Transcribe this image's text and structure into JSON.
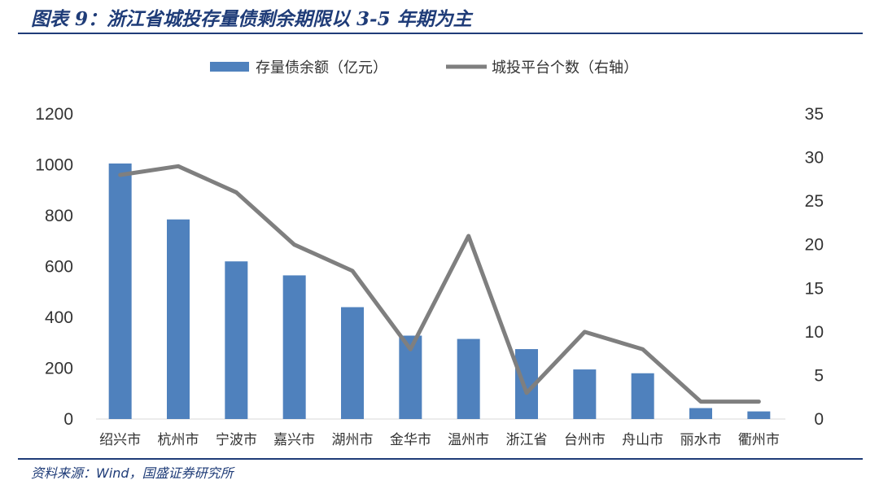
{
  "title": "图表 9：浙江省城投存量债剩余期限以 3-5 年期为主",
  "source": "资料来源：Wind，国盛证券研究所",
  "chart_data": {
    "type": "bar",
    "categories": [
      "绍兴市",
      "杭州市",
      "宁波市",
      "嘉兴市",
      "湖州市",
      "金华市",
      "温州市",
      "浙江省",
      "台州市",
      "舟山市",
      "丽水市",
      "衢州市"
    ],
    "series": [
      {
        "name": "存量债余额（亿元）",
        "type": "bar",
        "axis": "left",
        "color": "#4f81bd",
        "values": [
          1005,
          785,
          620,
          565,
          440,
          328,
          315,
          275,
          195,
          180,
          43,
          30
        ]
      },
      {
        "name": "城投平台个数（右轴）",
        "type": "line",
        "axis": "right",
        "color": "#7f7f7f",
        "values": [
          28,
          29,
          26,
          20,
          17,
          8,
          21,
          3,
          10,
          8,
          2,
          2
        ]
      }
    ],
    "y_left": {
      "min": 0,
      "max": 1200,
      "ticks": [
        0,
        200,
        400,
        600,
        800,
        1000,
        1200
      ]
    },
    "y_right": {
      "min": 0,
      "max": 35,
      "ticks": [
        0,
        5,
        10,
        15,
        20,
        25,
        30,
        35
      ]
    },
    "legend": "top-center",
    "grid": false
  }
}
